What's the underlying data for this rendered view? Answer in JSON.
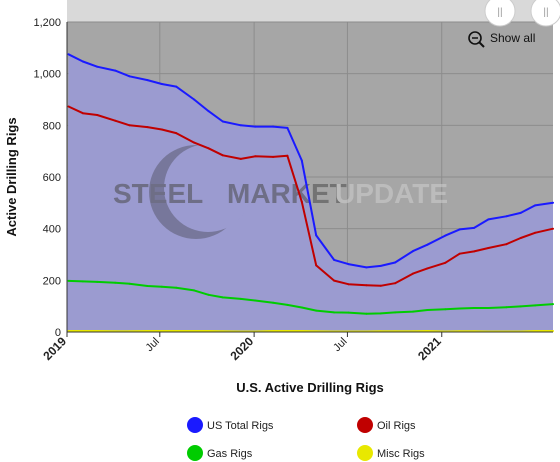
{
  "chart_data": {
    "type": "area",
    "title": "",
    "xlabel": "U.S. Active Drilling Rigs",
    "ylabel": "Active Drilling Rigs",
    "ylim": [
      0,
      1200
    ],
    "yticks": [
      "0",
      "200",
      "400",
      "600",
      "800",
      "1,000",
      "1,200"
    ],
    "xlim": [
      "2019-01-01",
      "2021-08-06"
    ],
    "xticks": [
      {
        "date": "2019-01-01",
        "label": "2019",
        "major": true
      },
      {
        "date": "2019-07-01",
        "label": "Jul",
        "major": false
      },
      {
        "date": "2020-01-01",
        "label": "2020",
        "major": true
      },
      {
        "date": "2020-07-01",
        "label": "Jul",
        "major": false
      },
      {
        "date": "2021-01-01",
        "label": "2021",
        "major": true
      }
    ],
    "x": [
      "2019-01-04",
      "2019-02-01",
      "2019-03-01",
      "2019-04-05",
      "2019-05-03",
      "2019-06-07",
      "2019-07-05",
      "2019-08-02",
      "2019-09-06",
      "2019-10-04",
      "2019-11-01",
      "2019-12-06",
      "2020-01-03",
      "2020-02-07",
      "2020-03-06",
      "2020-04-03",
      "2020-05-01",
      "2020-06-05",
      "2020-07-03",
      "2020-08-07",
      "2020-09-04",
      "2020-10-02",
      "2020-11-06",
      "2020-12-04",
      "2021-01-08",
      "2021-02-05",
      "2021-03-05",
      "2021-04-02",
      "2021-05-07",
      "2021-06-04",
      "2021-07-02",
      "2021-08-06"
    ],
    "series": [
      {
        "name": "US Total Rigs",
        "color": "#1a1aff",
        "values": [
          1075,
          1047,
          1027,
          1012,
          990,
          975,
          960,
          950,
          900,
          855,
          815,
          800,
          795,
          795,
          790,
          664,
          374,
          279,
          263,
          250,
          256,
          269,
          313,
          338,
          373,
          397,
          403,
          436,
          448,
          461,
          490,
          500
        ]
      },
      {
        "name": "Oil Rigs",
        "color": "#c00000",
        "values": [
          873,
          847,
          840,
          818,
          800,
          793,
          784,
          770,
          733,
          711,
          684,
          670,
          680,
          678,
          682,
          504,
          258,
          199,
          185,
          181,
          179,
          189,
          226,
          246,
          268,
          303,
          312,
          325,
          340,
          364,
          384,
          400
        ]
      },
      {
        "name": "Gas Rigs",
        "color": "#00cc00",
        "values": [
          198,
          196,
          194,
          191,
          187,
          178,
          175,
          171,
          161,
          144,
          134,
          128,
          122,
          113,
          105,
          95,
          83,
          76,
          75,
          71,
          72,
          76,
          79,
          85,
          88,
          91,
          93,
          93,
          96,
          99,
          103,
          108
        ]
      },
      {
        "name": "Misc Rigs",
        "color": "#e8e800",
        "values": [
          4,
          4,
          4,
          3,
          3,
          4,
          4,
          4,
          4,
          4,
          3,
          2,
          2,
          4,
          4,
          4,
          3,
          2,
          2,
          2,
          3,
          3,
          3,
          4,
          2,
          3,
          3,
          2,
          2,
          2,
          4,
          4
        ]
      }
    ],
    "grid": true,
    "legend_position": "bottom"
  },
  "watermark": {
    "part1": "STEEL",
    "part2": "MARKET",
    "part3": "UPDATE"
  },
  "toolbar": {
    "show_all_label": "Show all",
    "handle_left": "||",
    "handle_right": "||"
  },
  "colors": {
    "plot_bg": "#a6a6a6",
    "area_fill": "#9b9bd0",
    "nav_strip": "#d9d9d9"
  }
}
